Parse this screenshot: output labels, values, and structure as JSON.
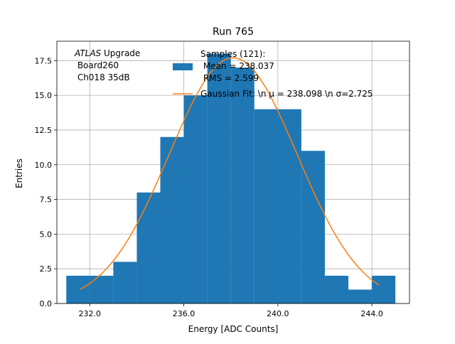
{
  "chart_data": {
    "type": "bar",
    "title": "Run 765",
    "xlabel": "Energy [ADC Counts]",
    "ylabel": "Entries",
    "xlim": [
      230.6,
      245.6
    ],
    "ylim": [
      0,
      18.9
    ],
    "grid": true,
    "bin_edges": [
      231,
      232,
      233,
      234,
      235,
      236,
      237,
      238,
      239,
      240,
      241,
      242,
      243,
      244,
      245
    ],
    "values": [
      2,
      2,
      3,
      8,
      12,
      15,
      18,
      17,
      14,
      14,
      11,
      2,
      1,
      2
    ],
    "bar_color": "#1f77b4",
    "fit": {
      "mu": 238.098,
      "sigma": 2.725,
      "amplitude": 17.7,
      "x_range": [
        231.6,
        244.3
      ],
      "color": "#ff7f0e"
    },
    "x_ticks": [
      {
        "value": 232,
        "label": "232.0"
      },
      {
        "value": 236,
        "label": "236.0"
      },
      {
        "value": 240,
        "label": "240.0"
      },
      {
        "value": 244,
        "label": "244.0"
      }
    ],
    "y_ticks": [
      {
        "value": 0,
        "label": "0.0"
      },
      {
        "value": 2.5,
        "label": "2.5"
      },
      {
        "value": 5,
        "label": "5.0"
      },
      {
        "value": 7.5,
        "label": "7.5"
      },
      {
        "value": 10,
        "label": "10.0"
      },
      {
        "value": 12.5,
        "label": "12.5"
      },
      {
        "value": 15,
        "label": "15.0"
      },
      {
        "value": 17.5,
        "label": "17.5"
      }
    ],
    "annotation": {
      "atlas": "ATLAS",
      "line1_rest": " Upgrade",
      "line2": " Board260",
      "line3": " Ch018 35dB"
    },
    "legend": {
      "hist_lines": [
        "Samples (121):",
        " Mean = 238.037",
        " RMS = 2.599"
      ],
      "fit_label": "Gaussian Fit: \\n μ = 238.098 \\n σ=2.725"
    }
  }
}
